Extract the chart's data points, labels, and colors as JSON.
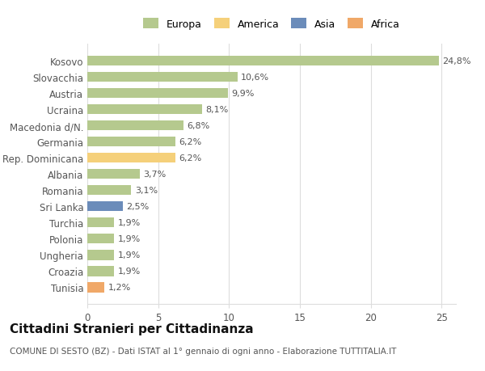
{
  "categories": [
    "Kosovo",
    "Slovacchia",
    "Austria",
    "Ucraina",
    "Macedonia d/N.",
    "Germania",
    "Rep. Dominicana",
    "Albania",
    "Romania",
    "Sri Lanka",
    "Turchia",
    "Polonia",
    "Ungheria",
    "Croazia",
    "Tunisia"
  ],
  "values": [
    24.8,
    10.6,
    9.9,
    8.1,
    6.8,
    6.2,
    6.2,
    3.7,
    3.1,
    2.5,
    1.9,
    1.9,
    1.9,
    1.9,
    1.2
  ],
  "labels": [
    "24,8%",
    "10,6%",
    "9,9%",
    "8,1%",
    "6,8%",
    "6,2%",
    "6,2%",
    "3,7%",
    "3,1%",
    "2,5%",
    "1,9%",
    "1,9%",
    "1,9%",
    "1,9%",
    "1,2%"
  ],
  "colors": [
    "#b5c98e",
    "#b5c98e",
    "#b5c98e",
    "#b5c98e",
    "#b5c98e",
    "#b5c98e",
    "#f5d07a",
    "#b5c98e",
    "#b5c98e",
    "#6b8cba",
    "#b5c98e",
    "#b5c98e",
    "#b5c98e",
    "#b5c98e",
    "#f0a868"
  ],
  "legend": [
    {
      "label": "Europa",
      "color": "#b5c98e"
    },
    {
      "label": "America",
      "color": "#f5d07a"
    },
    {
      "label": "Asia",
      "color": "#6b8cba"
    },
    {
      "label": "Africa",
      "color": "#f0a868"
    }
  ],
  "title": "Cittadini Stranieri per Cittadinanza",
  "subtitle": "COMUNE DI SESTO (BZ) - Dati ISTAT al 1° gennaio di ogni anno - Elaborazione TUTTITALIA.IT",
  "xlim": [
    0,
    26
  ],
  "xticks": [
    0,
    5,
    10,
    15,
    20,
    25
  ],
  "background_color": "#ffffff",
  "grid_color": "#dddddd",
  "bar_height": 0.62,
  "label_fontsize": 8,
  "tick_fontsize": 8.5,
  "title_fontsize": 11,
  "subtitle_fontsize": 7.5
}
